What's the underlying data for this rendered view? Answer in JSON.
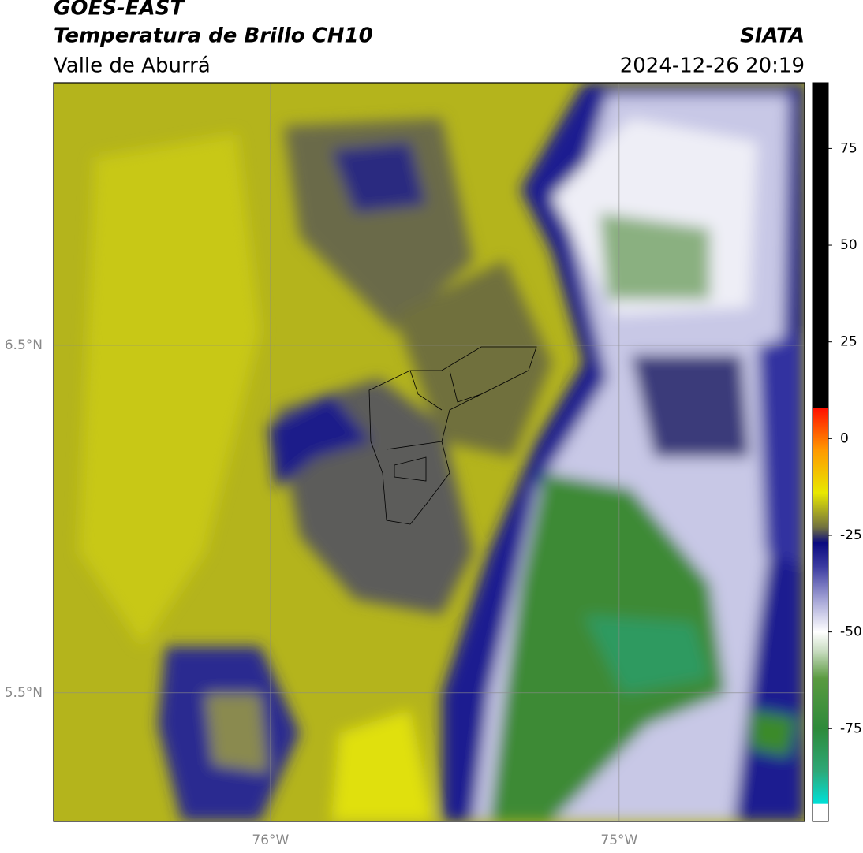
{
  "header": {
    "title": "GOES-EAST",
    "subtitle": "Temperatura de Brillo CH10",
    "region": "Valle de Aburrá",
    "source": "SIATA",
    "datetime": "2024-12-26 20:19"
  },
  "map": {
    "xlim": [
      -76.622,
      -74.468
    ],
    "ylim": [
      5.13,
      7.255
    ],
    "xticks": [
      {
        "value": -76,
        "label": "76°W"
      },
      {
        "value": -75,
        "label": "75°W"
      }
    ],
    "yticks": [
      {
        "value": 6.5,
        "label": "6.5°N"
      },
      {
        "value": 5.5,
        "label": "5.5°N"
      }
    ],
    "grid": true,
    "grid_color": "#8a8a8a"
  },
  "colorbar": {
    "lim": [
      -99,
      92
    ],
    "ticks": [
      75,
      50,
      25,
      0,
      -25,
      -50,
      -75
    ],
    "stops": [
      {
        "value": -99,
        "color": "#ffffff"
      },
      {
        "value": -94.5,
        "color": "#ffffff"
      },
      {
        "value": -94.4,
        "color": "#00e0d8"
      },
      {
        "value": -86,
        "color": "#2ea878"
      },
      {
        "value": -75,
        "color": "#2e8a3a"
      },
      {
        "value": -62,
        "color": "#5a9a40"
      },
      {
        "value": -55,
        "color": "#c8dcc0"
      },
      {
        "value": -50,
        "color": "#ffffff"
      },
      {
        "value": -42,
        "color": "#a8a8d8"
      },
      {
        "value": -33,
        "color": "#3a3aa0"
      },
      {
        "value": -27,
        "color": "#0a0a80"
      },
      {
        "value": -23,
        "color": "#707040"
      },
      {
        "value": -14,
        "color": "#e8e800"
      },
      {
        "value": -3,
        "color": "#ff9900"
      },
      {
        "value": 7.9,
        "color": "#ff1000"
      },
      {
        "value": 8,
        "color": "#000000"
      },
      {
        "value": 92,
        "color": "#000000"
      }
    ]
  }
}
